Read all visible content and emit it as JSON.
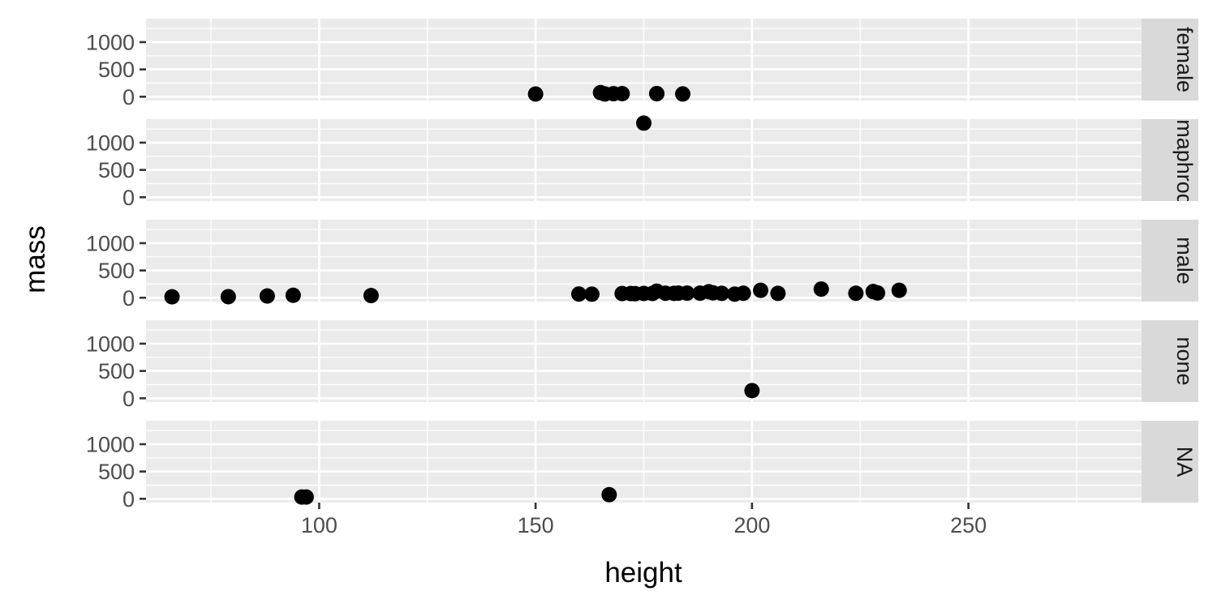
{
  "chart_data": {
    "type": "scatter",
    "xlabel": "height",
    "ylabel": "mass",
    "xlim": [
      60,
      290
    ],
    "ylim": [
      -70,
      1430
    ],
    "x_ticks": [
      100,
      150,
      200,
      250
    ],
    "y_ticks": [
      0,
      500,
      1000
    ],
    "grid": true,
    "facet_by": "gender",
    "panels": [
      {
        "label": "female",
        "points": [
          [
            150,
            49
          ],
          [
            165,
            75
          ],
          [
            166,
            50
          ],
          [
            168,
            55
          ],
          [
            170,
            56.2
          ],
          [
            178,
            57
          ],
          [
            178,
            55
          ],
          [
            184,
            50
          ]
        ]
      },
      {
        "label": "hermaphroditic",
        "points": [
          [
            175,
            1358
          ]
        ]
      },
      {
        "label": "male",
        "points": [
          [
            66,
            17
          ],
          [
            79,
            20
          ],
          [
            88,
            32
          ],
          [
            94,
            45
          ],
          [
            112,
            40
          ],
          [
            160,
            68
          ],
          [
            163,
            65
          ],
          [
            170,
            77
          ],
          [
            172,
            77
          ],
          [
            173,
            74
          ],
          [
            175,
            79
          ],
          [
            177,
            78
          ],
          [
            178,
            120
          ],
          [
            180,
            83
          ],
          [
            182,
            80
          ],
          [
            183,
            84
          ],
          [
            185,
            85
          ],
          [
            188,
            84
          ],
          [
            190,
            110
          ],
          [
            191,
            90
          ],
          [
            193,
            80
          ],
          [
            196,
            66
          ],
          [
            198,
            82
          ],
          [
            202,
            136
          ],
          [
            206,
            80
          ],
          [
            216,
            159
          ],
          [
            224,
            82
          ],
          [
            228,
            113
          ],
          [
            229,
            88
          ],
          [
            234,
            136
          ]
        ]
      },
      {
        "label": "none",
        "points": [
          [
            200,
            140
          ]
        ]
      },
      {
        "label": "NA",
        "points": [
          [
            96,
            32
          ],
          [
            97,
            32
          ],
          [
            167,
            75
          ]
        ]
      }
    ]
  }
}
